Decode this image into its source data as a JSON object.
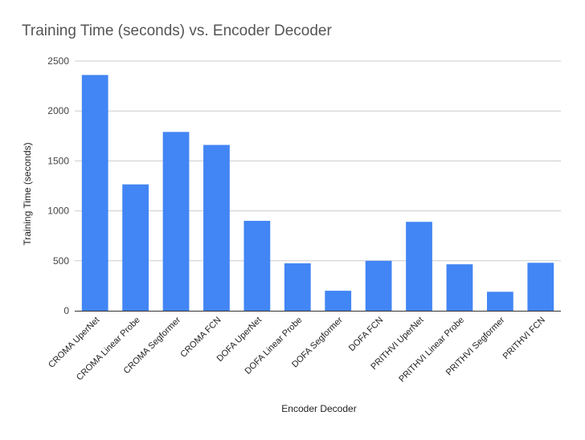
{
  "chart_data": {
    "type": "bar",
    "title": "Training Time (seconds) vs. Encoder Decoder",
    "xlabel": "Encoder Decoder",
    "ylabel": "Training Time (seconds)",
    "ylim": [
      0,
      2500
    ],
    "yticks": [
      0,
      500,
      1000,
      1500,
      2000,
      2500
    ],
    "grid": true,
    "bar_color": "#4285f4",
    "categories": [
      "CROMA UperNet",
      "CROMA Linear Probe",
      "CROMA Segformer",
      "CROMA FCN",
      "DOFA UperNet",
      "DOFA Linear Probe",
      "DOFA Segformer",
      "DOFA FCN",
      "PRITHVI UperNet",
      "PRITHVI Linear Probe",
      "PRITHVI Segformer",
      "PRITHVI FCN"
    ],
    "values": [
      2360,
      1265,
      1790,
      1660,
      900,
      475,
      200,
      500,
      890,
      465,
      190,
      480
    ]
  }
}
